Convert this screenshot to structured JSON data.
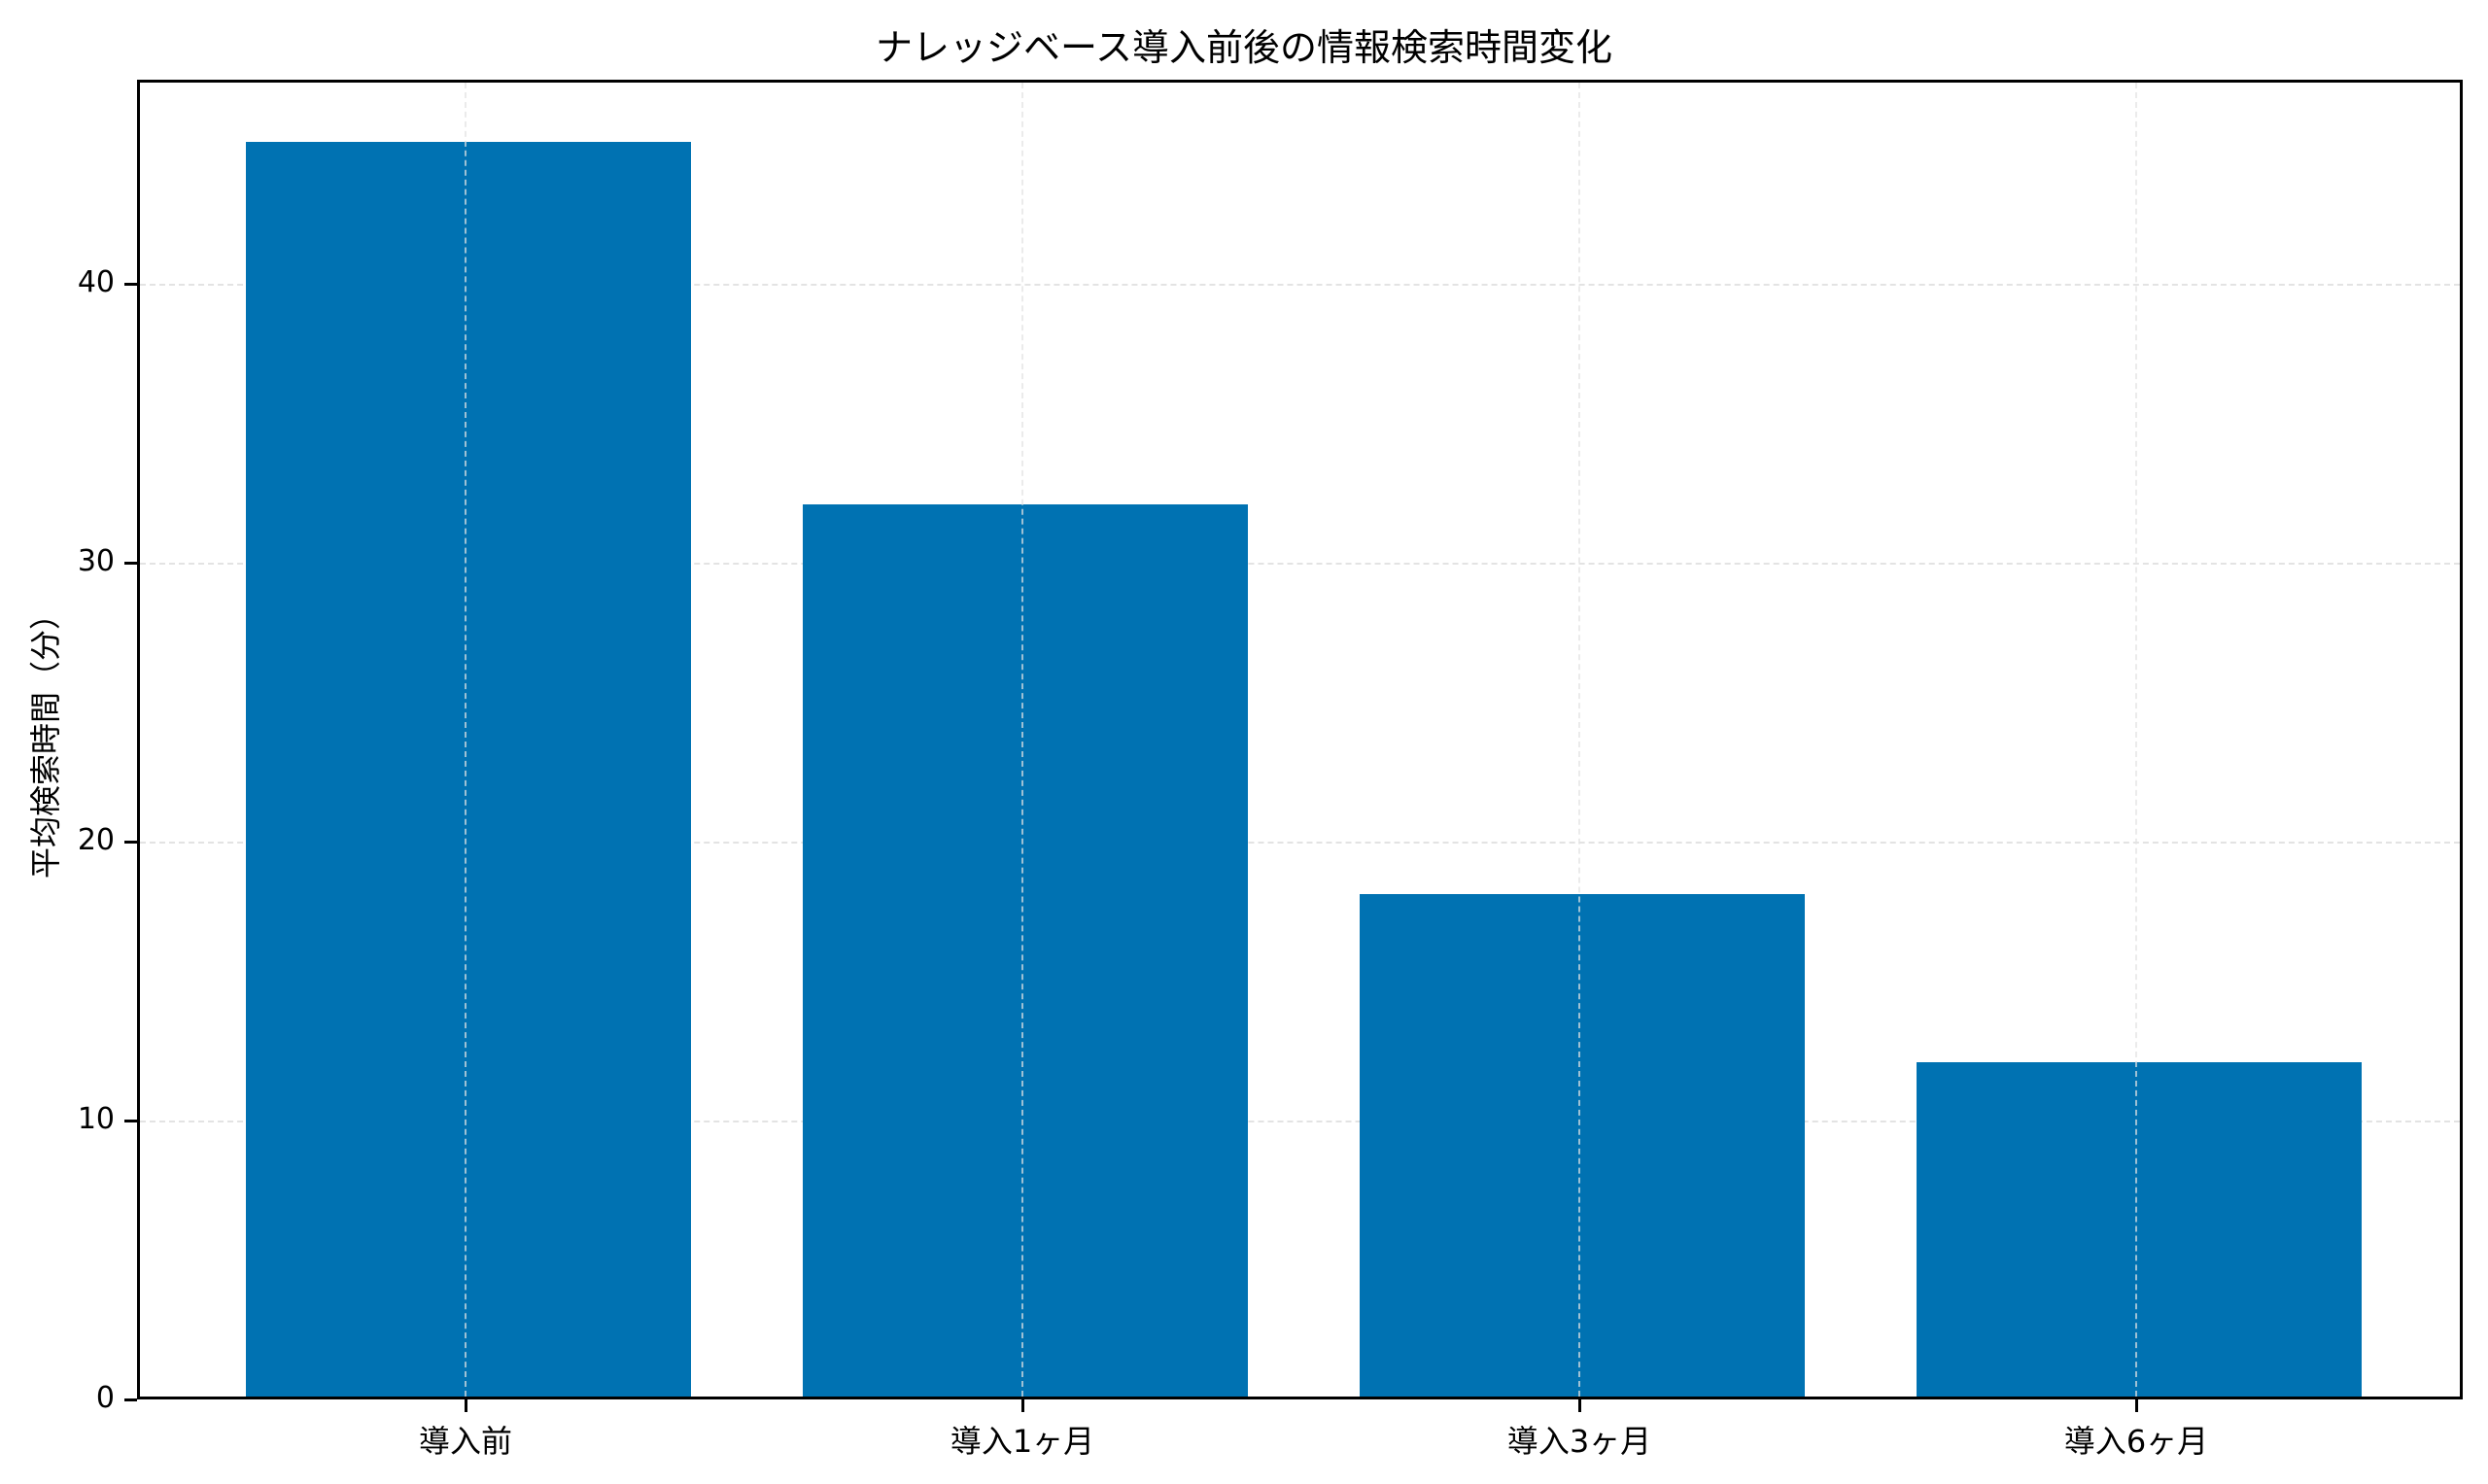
{
  "chart_data": {
    "type": "bar",
    "title": "ナレッジベース導入前後の情報検索時間変化",
    "xlabel": "",
    "ylabel": "平均検索時間（分）",
    "categories": [
      "導入前",
      "導入1ヶ月",
      "導入3ヶ月",
      "導入6ヶ月"
    ],
    "values": [
      45,
      32,
      18,
      12
    ],
    "ylim": [
      0,
      47.3
    ],
    "yticks": [
      "0",
      "10",
      "20",
      "30",
      "40"
    ],
    "grid": true,
    "legend": null,
    "bar_color": "#0072B2"
  }
}
